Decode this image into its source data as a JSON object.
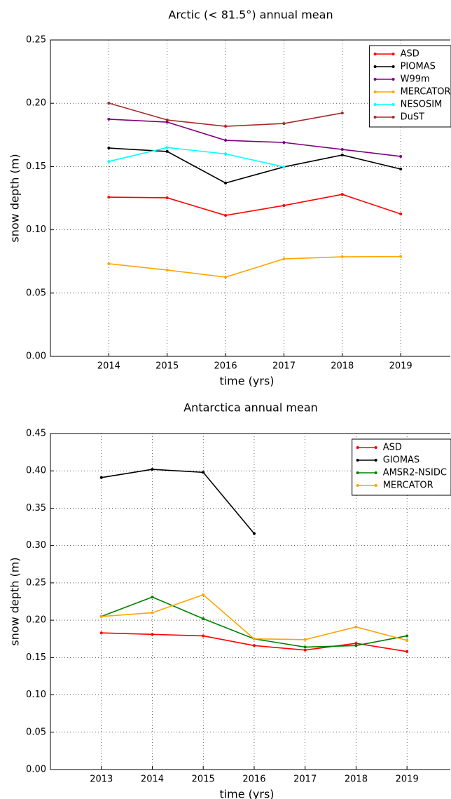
{
  "chart_data": [
    {
      "type": "line",
      "title": "Arctic (< 81.5°) annual mean",
      "xlabel": "time (yrs)",
      "ylabel": "snow depth (m)",
      "x": [
        2014,
        2015,
        2016,
        2017,
        2018,
        2019
      ],
      "series": [
        {
          "name": "ASD",
          "color": "#ff0000",
          "values": [
            0.1258,
            0.1253,
            0.1114,
            0.1192,
            0.128,
            0.1125
          ]
        },
        {
          "name": "PIOMAS",
          "color": "#000000",
          "values": [
            0.1646,
            0.1619,
            0.137,
            0.1497,
            0.1591,
            0.148
          ]
        },
        {
          "name": "W99m",
          "color": "#800080",
          "values": [
            0.1874,
            0.1851,
            0.1707,
            0.169,
            0.1635,
            0.158
          ]
        },
        {
          "name": "MERCATOR",
          "color": "#ffa500",
          "values": [
            0.0732,
            0.0682,
            0.0626,
            0.077,
            0.0787,
            0.0789
          ]
        },
        {
          "name": "NESOSIM",
          "color": "#00ffff",
          "values": [
            0.154,
            0.165,
            0.16,
            0.1497,
            null,
            null
          ]
        },
        {
          "name": "DuST",
          "color": "#a52a2a",
          "values": [
            0.2001,
            0.1868,
            0.1818,
            0.184,
            0.1923,
            null
          ]
        }
      ],
      "xlim": [
        2013,
        2019.85
      ],
      "xticks": [
        2014,
        2015,
        2016,
        2017,
        2018,
        2019
      ],
      "ylim": [
        0,
        0.25
      ],
      "yticks": [
        {
          "value": 0,
          "label": "0.00"
        },
        0.05,
        {
          "value": 0.1,
          "label": "0.10"
        },
        0.15,
        {
          "value": 0.2,
          "label": "0.20"
        },
        0.25
      ],
      "grid": true,
      "legend": "upper right"
    },
    {
      "type": "line",
      "title": "Antarctica annual mean",
      "xlabel": "time (yrs)",
      "ylabel": "snow depth (m)",
      "x": [
        2013,
        2014,
        2015,
        2016,
        2017,
        2018,
        2019
      ],
      "series": [
        {
          "name": "ASD",
          "color": "#ff0000",
          "values": [
            0.183,
            0.181,
            0.179,
            0.166,
            0.16,
            0.169,
            0.158
          ]
        },
        {
          "name": "GIOMAS",
          "color": "#000000",
          "values": [
            0.391,
            0.402,
            0.398,
            0.316,
            null,
            null,
            null
          ]
        },
        {
          "name": "AMSR2-NSIDC",
          "color": "#008000",
          "values": [
            0.205,
            0.231,
            0.202,
            0.175,
            0.164,
            0.166,
            0.179
          ]
        },
        {
          "name": "MERCATOR",
          "color": "#ffa500",
          "values": [
            0.205,
            0.21,
            0.234,
            0.175,
            0.174,
            0.191,
            0.173
          ]
        }
      ],
      "xlim": [
        2012,
        2019.85
      ],
      "xticks": [
        2013,
        2014,
        2015,
        2016,
        2017,
        2018,
        2019
      ],
      "ylim": [
        0,
        0.45
      ],
      "yticks": [
        {
          "value": 0,
          "label": "0.00"
        },
        0.05,
        {
          "value": 0.1,
          "label": "0.10"
        },
        0.15,
        {
          "value": 0.2,
          "label": "0.20"
        },
        0.25,
        {
          "value": 0.3,
          "label": "0.30"
        },
        0.35,
        {
          "value": 0.4,
          "label": "0.40"
        },
        0.45
      ],
      "grid": true,
      "legend": "upper right"
    }
  ]
}
